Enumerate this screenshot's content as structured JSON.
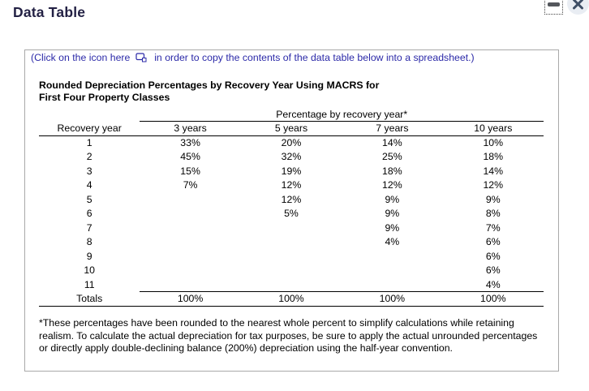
{
  "window": {
    "title": "Data Table",
    "controls": {
      "minimize_icon": "minimize-bar",
      "close_icon": "close-x"
    }
  },
  "dialog": {
    "instruction": {
      "part1": "(Click on the icon here",
      "copy_icon": "copy-to-spreadsheet",
      "part2": "in order to copy the contents of the data table below into a spreadsheet.)"
    },
    "heading_line1": "Rounded Depreciation Percentages by Recovery Year Using MACRS for",
    "heading_line2": "First Four Property Classes",
    "table": {
      "span_header": "Percentage by recovery year*",
      "columns": [
        "Recovery year",
        "3 years",
        "5 years",
        "7 years",
        "10 years"
      ],
      "rows": [
        [
          "1",
          "33%",
          "20%",
          "14%",
          "10%"
        ],
        [
          "2",
          "45%",
          "32%",
          "25%",
          "18%"
        ],
        [
          "3",
          "15%",
          "19%",
          "18%",
          "14%"
        ],
        [
          "4",
          "7%",
          "12%",
          "12%",
          "12%"
        ],
        [
          "5",
          "",
          "12%",
          "9%",
          "9%"
        ],
        [
          "6",
          "",
          "5%",
          "9%",
          "8%"
        ],
        [
          "7",
          "",
          "",
          "9%",
          "7%"
        ],
        [
          "8",
          "",
          "",
          "4%",
          "6%"
        ],
        [
          "9",
          "",
          "",
          "",
          "6%"
        ],
        [
          "10",
          "",
          "",
          "",
          "6%"
        ],
        [
          "11",
          "",
          "",
          "",
          "4%"
        ]
      ],
      "totals_label": "Totals",
      "totals": [
        "100%",
        "100%",
        "100%",
        "100%"
      ]
    },
    "footnote": "*These percentages have been rounded to the nearest whole percent to simplify calculations while retaining realism. To calculate the actual depreciation for tax purposes, be sure to apply the actual unrounded percentages or directly apply double-declining balance (200%) depreciation using the half-year convention."
  },
  "colors": {
    "title_navy": "#232144",
    "instruction_blue": "#2b29a8",
    "dialog_border_gray": "#a9a9a9",
    "table_rule_black": "#000000",
    "minimize_bar_gray": "#54575c",
    "close_circle_bg": "#e9edf3",
    "close_x": "#3e4e66"
  }
}
